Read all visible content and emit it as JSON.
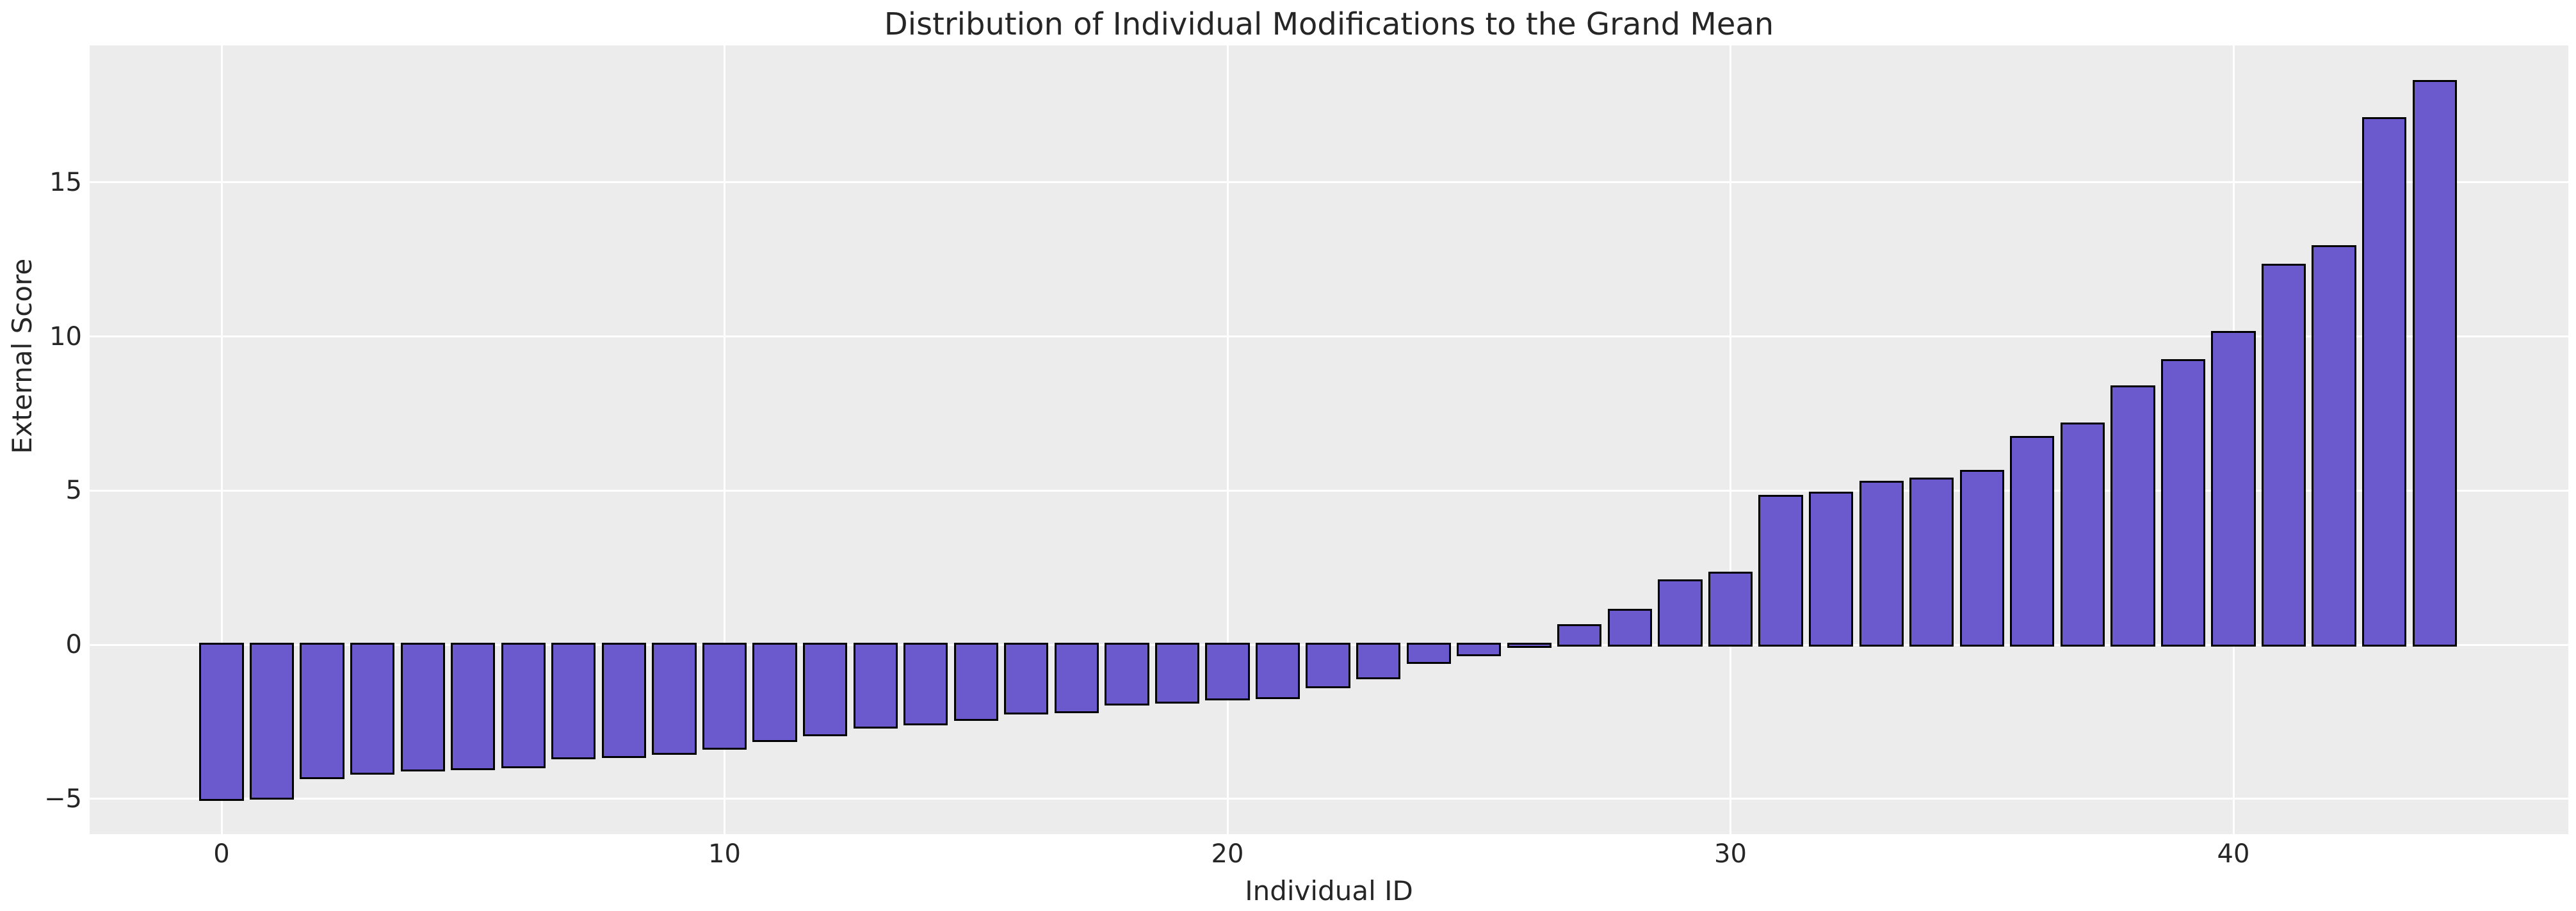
{
  "figure": {
    "title": "Distribution of Individual Modifications to the Grand Mean",
    "xlabel": "Individual ID",
    "ylabel": "External Score"
  },
  "chart_data": {
    "type": "bar",
    "title": "Distribution of Individual Modifications to the Grand Mean",
    "xlabel": "Individual ID",
    "ylabel": "External Score",
    "x": [
      0,
      1,
      2,
      3,
      4,
      5,
      6,
      7,
      8,
      9,
      10,
      11,
      12,
      13,
      14,
      15,
      16,
      17,
      18,
      19,
      20,
      21,
      22,
      23,
      24,
      25,
      26,
      27,
      28,
      29,
      30,
      31,
      32,
      33,
      34,
      35,
      36,
      37,
      38,
      39,
      40,
      41,
      42,
      43,
      44
    ],
    "values": [
      -5.0,
      -4.95,
      -4.3,
      -4.15,
      -4.05,
      -4.0,
      -3.95,
      -3.65,
      -3.6,
      -3.5,
      -3.35,
      -3.1,
      -2.9,
      -2.65,
      -2.55,
      -2.4,
      -2.2,
      -2.15,
      -1.9,
      -1.85,
      -1.75,
      -1.7,
      -1.35,
      -1.05,
      -0.55,
      -0.3,
      -0.03,
      0.6,
      1.1,
      2.05,
      2.3,
      4.8,
      4.9,
      5.25,
      5.35,
      5.6,
      6.7,
      7.15,
      8.35,
      9.2,
      10.1,
      12.3,
      12.9,
      17.05,
      18.25
    ],
    "xticks": {
      "values": [
        0,
        10,
        20,
        30,
        40
      ],
      "labels": [
        "0",
        "10",
        "20",
        "30",
        "40"
      ]
    },
    "yticks": {
      "values": [
        -5,
        0,
        5,
        10,
        15
      ],
      "labels": [
        "−5",
        "0",
        "5",
        "10",
        "15"
      ]
    },
    "xlim": [
      -2.64,
      46.64
    ],
    "ylim": [
      -6.16,
      19.42
    ],
    "grid": true,
    "legend": null,
    "bar_width_fraction": 0.8,
    "colors": {
      "figure_background": "#FFFFFF",
      "plot_background": "#ECECEC",
      "grid": "#FFFFFF",
      "bar_fill": "#6A5ACD",
      "bar_edge": "#000000",
      "text": "#262626"
    }
  }
}
